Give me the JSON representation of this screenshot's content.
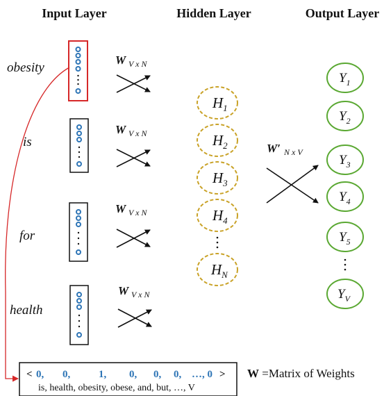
{
  "headers": {
    "input": "Input Layer",
    "hidden": "Hidden Layer",
    "output": "Output Layer"
  },
  "words": [
    "obesity",
    "is",
    "for",
    "health"
  ],
  "weight_label": {
    "base": "W",
    "sub": "V x N",
    "output_base": "W′",
    "output_sub": "N x V"
  },
  "hidden_nodes": [
    "H1",
    "H2",
    "H3",
    "H4",
    "HN"
  ],
  "output_nodes": [
    "Y1",
    "Y2",
    "Y3",
    "Y4",
    "Y5",
    "YV"
  ],
  "vocab_box": {
    "vector_parts": [
      "< ",
      "0,",
      "0,",
      "1,",
      "0,",
      "0,",
      "0,",
      "…, 0",
      " >"
    ],
    "vocabulary": "is, health, obesity, obese, and, but, …, V"
  },
  "legend": {
    "symbol": "W",
    "text": " =Matrix of Weights"
  },
  "colors": {
    "input_dot": "#2e75b6",
    "highlight_box": "#d62728",
    "hidden_node": "#c9a227",
    "output_node": "#5aa832",
    "vector_value": "#2e75b6"
  }
}
